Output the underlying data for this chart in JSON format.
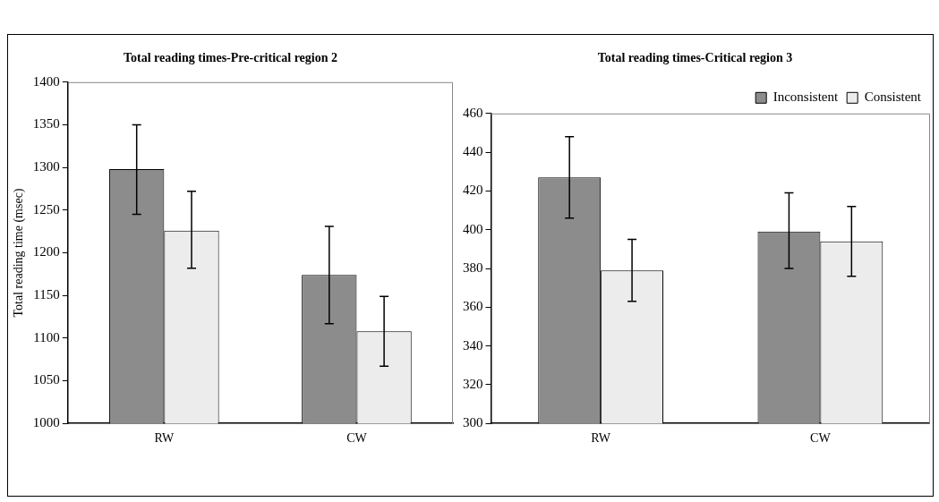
{
  "chart_data": [
    {
      "type": "bar",
      "title": "Total reading times-Pre-critical region 2",
      "ylabel": "Total reading time (msec)",
      "categories": [
        "RW",
        "CW"
      ],
      "series": [
        {
          "color": "#8c8c8c",
          "values": [
            1298,
            1174
          ],
          "errors": [
            [
              1245,
              1350
            ],
            [
              1117,
              1231
            ]
          ]
        },
        {
          "color": "#ececec",
          "values": [
            1226,
            1108
          ],
          "errors": [
            [
              1182,
              1272
            ],
            [
              1067,
              1149
            ]
          ]
        }
      ],
      "ylim": [
        1000,
        1400
      ],
      "yticks": [
        1000,
        1050,
        1100,
        1150,
        1200,
        1250,
        1300,
        1350,
        1400
      ],
      "grid": false,
      "legend": false
    },
    {
      "type": "bar",
      "title": "Total reading times-Critical region 3",
      "categories": [
        "RW",
        "CW"
      ],
      "series": [
        {
          "name": "Inconsistent",
          "color": "#8c8c8c",
          "values": [
            427,
            399
          ],
          "errors": [
            [
              406,
              448
            ],
            [
              380,
              419
            ]
          ]
        },
        {
          "name": "Consistent",
          "color": "#ececec",
          "values": [
            379,
            394
          ],
          "errors": [
            [
              363,
              395
            ],
            [
              376,
              412
            ]
          ]
        }
      ],
      "ylim": [
        300,
        460
      ],
      "yticks": [
        300,
        320,
        340,
        360,
        380,
        400,
        420,
        440,
        460
      ],
      "grid": false,
      "legend": "top right"
    }
  ]
}
